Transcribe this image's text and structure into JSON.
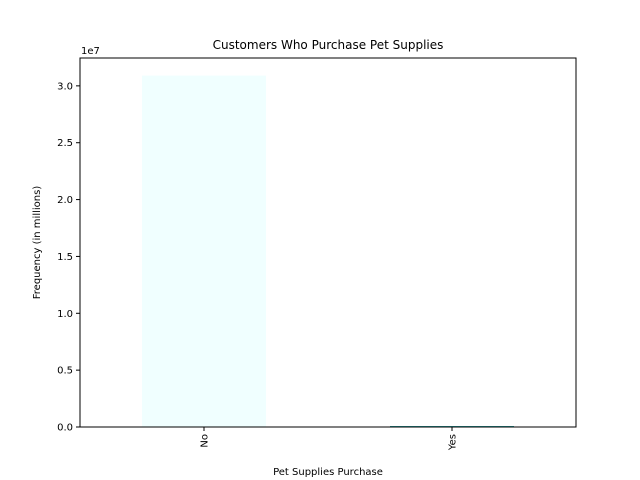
{
  "chart_data": {
    "type": "bar",
    "title": "Customers Who Purchase Pet Supplies",
    "xlabel": "Pet Supplies Purchase",
    "ylabel": "Frequency (in millions)",
    "categories": [
      "No",
      "Yes"
    ],
    "values": [
      30900000,
      80000
    ],
    "ylim": [
      0,
      32450000
    ],
    "yticks": [
      0,
      5000000,
      10000000,
      15000000,
      20000000,
      25000000,
      30000000
    ],
    "ytick_labels": [
      "0.0",
      "0.5",
      "1.0",
      "1.5",
      "2.0",
      "2.5",
      "3.0"
    ],
    "offset_label": "1e7",
    "bar_colors": [
      "#f0ffff",
      "#008b8b"
    ],
    "grid": false,
    "x_tick_rotation": "vertical"
  }
}
